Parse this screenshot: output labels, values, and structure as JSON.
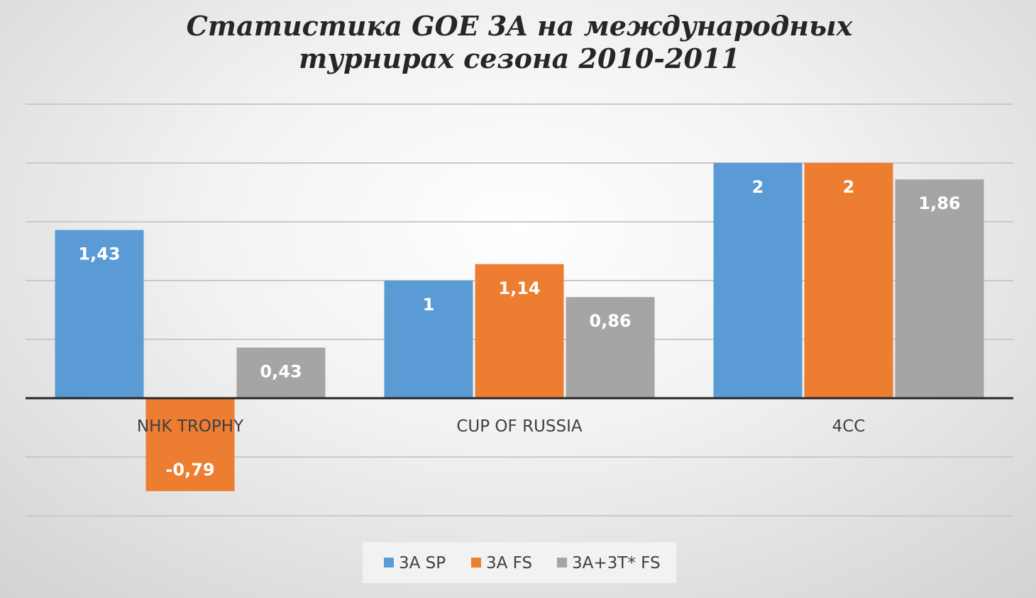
{
  "chart_data": {
    "type": "bar",
    "title_lines": [
      "Статистика GOE 3A на международных",
      "турнирах сезона 2010-2011"
    ],
    "categories": [
      "NHK TROPHY",
      "CUP OF RUSSIA",
      "4CC"
    ],
    "series": [
      {
        "name": "3A SP",
        "color": "#5b9bd5",
        "values": [
          1.43,
          1,
          2
        ],
        "labels": [
          "1,43",
          "1",
          "2"
        ]
      },
      {
        "name": "3A FS",
        "color": "#ed7d31",
        "values": [
          -0.79,
          1.14,
          2
        ],
        "labels": [
          "-0,79",
          "1,14",
          "2"
        ]
      },
      {
        "name": "3A+3T* FS",
        "color": "#a5a5a5",
        "values": [
          0.43,
          0.86,
          1.86
        ],
        "labels": [
          "0,43",
          "0,86",
          "1,86"
        ]
      }
    ],
    "ylim": [
      -1,
      2.5
    ],
    "y_grid_step": 0.5,
    "grid": true,
    "legend_position": "bottom"
  }
}
